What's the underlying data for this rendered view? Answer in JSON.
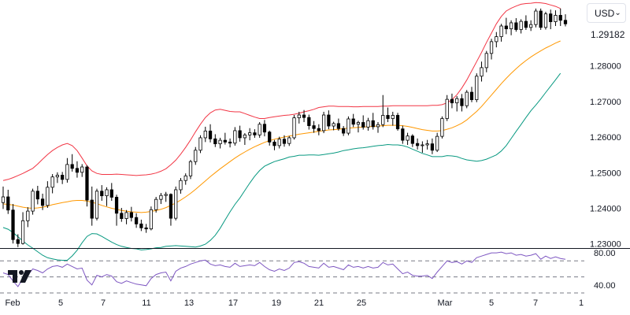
{
  "currency_selector": {
    "label": "USD",
    "icon": "chevron-down-icon"
  },
  "last_price": "1.29182",
  "logo": "tradingview-logo",
  "colors": {
    "up": "#ffffff",
    "down": "#000000",
    "upper_band": "#f23645",
    "basis": "#ff9800",
    "lower_band": "#089981",
    "rsi": "#7e57c2",
    "rsi_levels": "#787b86"
  },
  "chart_data": {
    "type": "candlestick",
    "price_axis": {
      "ticks": [
        "1.23000",
        "1.24000",
        "1.25000",
        "1.26000",
        "1.27000",
        "1.28000"
      ],
      "range": [
        1.2286,
        1.2985
      ]
    },
    "rsi_axis": {
      "ticks": [
        "80.00",
        "40.00"
      ],
      "range": [
        30,
        85
      ],
      "levels": [
        70,
        50,
        30
      ]
    },
    "x_ticks": [
      "Feb",
      "5",
      "7",
      "11",
      "13",
      "17",
      "19",
      "21",
      "25",
      "Mar",
      "5",
      "7",
      "1"
    ],
    "candles": [
      [
        1.2416,
        1.2461,
        1.2398,
        1.2432
      ],
      [
        1.2432,
        1.2452,
        1.2384,
        1.2395
      ],
      [
        1.2395,
        1.2412,
        1.2301,
        1.2312
      ],
      [
        1.2312,
        1.2327,
        1.2291,
        1.2301
      ],
      [
        1.2301,
        1.2389,
        1.2298,
        1.2365
      ],
      [
        1.2365,
        1.2403,
        1.2347,
        1.2392
      ],
      [
        1.2392,
        1.2455,
        1.2382,
        1.2448
      ],
      [
        1.2448,
        1.2463,
        1.2411,
        1.2426
      ],
      [
        1.2426,
        1.2441,
        1.2395,
        1.2408
      ],
      [
        1.2408,
        1.2476,
        1.2401,
        1.2459
      ],
      [
        1.2459,
        1.2496,
        1.2442,
        1.2488
      ],
      [
        1.2488,
        1.2501,
        1.2471,
        1.2493
      ],
      [
        1.2493,
        1.2502,
        1.2468,
        1.2481
      ],
      [
        1.2481,
        1.2541,
        1.2472,
        1.2523
      ],
      [
        1.2523,
        1.2552,
        1.2503,
        1.2512
      ],
      [
        1.2512,
        1.2532,
        1.2486,
        1.2501
      ],
      [
        1.2501,
        1.2524,
        1.2488,
        1.2516
      ],
      [
        1.2516,
        1.2521,
        1.2405,
        1.2423
      ],
      [
        1.2423,
        1.2461,
        1.2351,
        1.2372
      ],
      [
        1.2372,
        1.2455,
        1.2366,
        1.2448
      ],
      [
        1.2448,
        1.2465,
        1.2421,
        1.2435
      ],
      [
        1.2435,
        1.2459,
        1.2406,
        1.2452
      ],
      [
        1.2452,
        1.2471,
        1.2421,
        1.2431
      ],
      [
        1.2431,
        1.2438,
        1.2351,
        1.2386
      ],
      [
        1.2386,
        1.2401,
        1.2362,
        1.2371
      ],
      [
        1.2371,
        1.2395,
        1.2355,
        1.2388
      ],
      [
        1.2388,
        1.2404,
        1.2363,
        1.2374
      ],
      [
        1.2374,
        1.2386,
        1.2345,
        1.2356
      ],
      [
        1.2356,
        1.2368,
        1.2336,
        1.2345
      ],
      [
        1.2345,
        1.2356,
        1.2331,
        1.2342
      ],
      [
        1.2342,
        1.2405,
        1.2338,
        1.2396
      ],
      [
        1.2396,
        1.2432,
        1.2388,
        1.2425
      ],
      [
        1.2425,
        1.2443,
        1.2412,
        1.2436
      ],
      [
        1.2436,
        1.2446,
        1.2418,
        1.2439
      ],
      [
        1.2439,
        1.2442,
        1.2351,
        1.2372
      ],
      [
        1.2372,
        1.2461,
        1.2366,
        1.2452
      ],
      [
        1.2452,
        1.2485,
        1.2441,
        1.2478
      ],
      [
        1.2478,
        1.2498,
        1.2466,
        1.2491
      ],
      [
        1.2491,
        1.2536,
        1.2482,
        1.2531
      ],
      [
        1.2531,
        1.2572,
        1.2522,
        1.2563
      ],
      [
        1.2563,
        1.2605,
        1.2555,
        1.2598
      ],
      [
        1.2598,
        1.2629,
        1.2586,
        1.2617
      ],
      [
        1.2617,
        1.2636,
        1.2585,
        1.2595
      ],
      [
        1.2595,
        1.2608,
        1.2572,
        1.2581
      ],
      [
        1.2581,
        1.2598,
        1.2568,
        1.2591
      ],
      [
        1.2591,
        1.2612,
        1.2579,
        1.2586
      ],
      [
        1.2586,
        1.2596,
        1.2571,
        1.2583
      ],
      [
        1.2583,
        1.2628,
        1.2576,
        1.2618
      ],
      [
        1.2618,
        1.2632,
        1.2587,
        1.2598
      ],
      [
        1.2598,
        1.2611,
        1.2578,
        1.2606
      ],
      [
        1.2606,
        1.2625,
        1.2591,
        1.2612
      ],
      [
        1.2612,
        1.2622,
        1.2598,
        1.2606
      ],
      [
        1.2606,
        1.2642,
        1.2598,
        1.2636
      ],
      [
        1.2636,
        1.2648,
        1.2602,
        1.2614
      ],
      [
        1.2614,
        1.2618,
        1.2576,
        1.2586
      ],
      [
        1.2586,
        1.2592,
        1.2563,
        1.2576
      ],
      [
        1.2576,
        1.2601,
        1.2568,
        1.2594
      ],
      [
        1.2594,
        1.2605,
        1.2573,
        1.2582
      ],
      [
        1.2582,
        1.2603,
        1.2575,
        1.2598
      ],
      [
        1.2598,
        1.2662,
        1.2593,
        1.2654
      ],
      [
        1.2654,
        1.2671,
        1.2638,
        1.2662
      ],
      [
        1.2662,
        1.2676,
        1.2642,
        1.2655
      ],
      [
        1.2655,
        1.2663,
        1.2621,
        1.2632
      ],
      [
        1.2632,
        1.2645,
        1.2612,
        1.2624
      ],
      [
        1.2624,
        1.2636,
        1.2605,
        1.2618
      ],
      [
        1.2618,
        1.2671,
        1.2611,
        1.2662
      ],
      [
        1.2662,
        1.2675,
        1.2622,
        1.2631
      ],
      [
        1.2631,
        1.2643,
        1.2619,
        1.2638
      ],
      [
        1.2638,
        1.2652,
        1.2618,
        1.2624
      ],
      [
        1.2624,
        1.2631,
        1.2603,
        1.2611
      ],
      [
        1.2611,
        1.2658,
        1.2605,
        1.2651
      ],
      [
        1.2651,
        1.2665,
        1.2628,
        1.2636
      ],
      [
        1.2636,
        1.2646,
        1.2613,
        1.2641
      ],
      [
        1.2641,
        1.2661,
        1.2621,
        1.2628
      ],
      [
        1.2628,
        1.2654,
        1.2618,
        1.2646
      ],
      [
        1.2646,
        1.2668,
        1.2621,
        1.2629
      ],
      [
        1.2629,
        1.2642,
        1.2612,
        1.2635
      ],
      [
        1.2635,
        1.2718,
        1.2628,
        1.2661
      ],
      [
        1.2661,
        1.2683,
        1.2642,
        1.2652
      ],
      [
        1.2652,
        1.2671,
        1.2632,
        1.2661
      ],
      [
        1.2661,
        1.2668,
        1.2618,
        1.2623
      ],
      [
        1.2623,
        1.2632,
        1.2581,
        1.2591
      ],
      [
        1.2591,
        1.2612,
        1.2578,
        1.2603
      ],
      [
        1.2603,
        1.2608,
        1.2572,
        1.2582
      ],
      [
        1.2582,
        1.2596,
        1.2565,
        1.2576
      ],
      [
        1.2576,
        1.2588,
        1.2556,
        1.2578
      ],
      [
        1.2578,
        1.2592,
        1.2565,
        1.2581
      ],
      [
        1.2581,
        1.2596,
        1.2552,
        1.2563
      ],
      [
        1.2563,
        1.2612,
        1.2558,
        1.2602
      ],
      [
        1.2602,
        1.2658,
        1.2596,
        1.2652
      ],
      [
        1.2652,
        1.2718,
        1.2645,
        1.2706
      ],
      [
        1.2706,
        1.2722,
        1.2681,
        1.2696
      ],
      [
        1.2696,
        1.2715,
        1.2672,
        1.2708
      ],
      [
        1.2708,
        1.2721,
        1.2672,
        1.2688
      ],
      [
        1.2688,
        1.2732,
        1.2681,
        1.2726
      ],
      [
        1.2726,
        1.2741,
        1.2698,
        1.2705
      ],
      [
        1.2705,
        1.2779,
        1.2698,
        1.2771
      ],
      [
        1.2771,
        1.2812,
        1.2756,
        1.2795
      ],
      [
        1.2795,
        1.2842,
        1.2782,
        1.2835
      ],
      [
        1.2835,
        1.2876,
        1.2818,
        1.2868
      ],
      [
        1.2868,
        1.2895,
        1.2852,
        1.2882
      ],
      [
        1.2882,
        1.2918,
        1.2868,
        1.2912
      ],
      [
        1.2912,
        1.2935,
        1.2889,
        1.2904
      ],
      [
        1.2904,
        1.2928,
        1.2886,
        1.2921
      ],
      [
        1.2921,
        1.2934,
        1.2896,
        1.2902
      ],
      [
        1.2902,
        1.2931,
        1.2891,
        1.2925
      ],
      [
        1.2925,
        1.2942,
        1.2901,
        1.2908
      ],
      [
        1.2908,
        1.2928,
        1.2898,
        1.2916
      ],
      [
        1.2916,
        1.2961,
        1.2908,
        1.2954
      ],
      [
        1.2954,
        1.2961,
        1.2901,
        1.2908
      ],
      [
        1.2908,
        1.2952,
        1.2902,
        1.2946
      ],
      [
        1.2946,
        1.2958,
        1.2903,
        1.2924
      ],
      [
        1.2924,
        1.2956,
        1.2912,
        1.2942
      ],
      [
        1.2942,
        1.2961,
        1.2912,
        1.2928
      ],
      [
        1.2928,
        1.2945,
        1.2911,
        1.2918
      ]
    ],
    "bollinger": {
      "upper": [
        1.2478,
        1.2481,
        1.2486,
        1.2492,
        1.2498,
        1.2505,
        1.2512,
        1.2524,
        1.2538,
        1.2551,
        1.2562,
        1.2571,
        1.2578,
        1.2582,
        1.2576,
        1.2562,
        1.2541,
        1.2519,
        1.2505,
        1.2498,
        1.2495,
        1.2495,
        1.2495,
        1.2496,
        1.2495,
        1.2494,
        1.2493,
        1.2492,
        1.2493,
        1.2494,
        1.2496,
        1.2499,
        1.2504,
        1.2511,
        1.2522,
        1.2535,
        1.2552,
        1.2571,
        1.2592,
        1.2615,
        1.2636,
        1.2655,
        1.2668,
        1.2676,
        1.2678,
        1.2675,
        1.2672,
        1.2671,
        1.2671,
        1.2666,
        1.2661,
        1.2656,
        1.2652,
        1.2652,
        1.2655,
        1.2657,
        1.2659,
        1.2661,
        1.2662,
        1.2664,
        1.2667,
        1.2671,
        1.2674,
        1.2678,
        1.2683,
        1.2685,
        1.2687,
        1.2687,
        1.2686,
        1.2686,
        1.2686,
        1.2685,
        1.2685,
        1.2686,
        1.2686,
        1.2686,
        1.2686,
        1.2687,
        1.2687,
        1.2688,
        1.2688,
        1.2688,
        1.2688,
        1.2688,
        1.2688,
        1.2688,
        1.2688,
        1.2689,
        1.2689,
        1.2691,
        1.2696,
        1.2705,
        1.2719,
        1.2738,
        1.276,
        1.2786,
        1.2812,
        1.2838,
        1.2866,
        1.2892,
        1.2918,
        1.2939,
        1.2954,
        1.2962,
        1.2968,
        1.2973,
        1.2975,
        1.2976,
        1.2978,
        1.2977,
        1.2975,
        1.2971,
        1.2967,
        1.2961
      ],
      "basis": [
        1.2412,
        1.2411,
        1.2409,
        1.2406,
        1.2403,
        1.2401,
        1.24,
        1.2401,
        1.2403,
        1.2406,
        1.241,
        1.2413,
        1.2416,
        1.2418,
        1.2421,
        1.2422,
        1.2422,
        1.242,
        1.2417,
        1.2413,
        1.2408,
        1.2404,
        1.24,
        1.2397,
        1.2394,
        1.2392,
        1.239,
        1.2389,
        1.2388,
        1.2389,
        1.2391,
        1.2394,
        1.2397,
        1.2402,
        1.2408,
        1.2415,
        1.2423,
        1.2432,
        1.2442,
        1.2453,
        1.2465,
        1.2477,
        1.2489,
        1.25,
        1.2511,
        1.2521,
        1.2531,
        1.2541,
        1.255,
        1.2558,
        1.2566,
        1.2573,
        1.2579,
        1.2585,
        1.259,
        1.2594,
        1.2597,
        1.26,
        1.2603,
        1.2605,
        1.2608,
        1.261,
        1.2612,
        1.2614,
        1.2616,
        1.2618,
        1.262,
        1.2621,
        1.2622,
        1.2624,
        1.2625,
        1.2626,
        1.2627,
        1.2628,
        1.2629,
        1.263,
        1.2631,
        1.2632,
        1.2633,
        1.2633,
        1.2633,
        1.2632,
        1.263,
        1.2627,
        1.2624,
        1.2621,
        1.2619,
        1.2617,
        1.2617,
        1.2618,
        1.2622,
        1.2626,
        1.2632,
        1.2639,
        1.2648,
        1.266,
        1.2672,
        1.2686,
        1.2702,
        1.2718,
        1.2734,
        1.275,
        1.2765,
        1.2779,
        1.2792,
        1.2804,
        1.2815,
        1.2825,
        1.2834,
        1.2842,
        1.285,
        1.2857,
        1.2864,
        1.287
      ],
      "lower": [
        1.2346,
        1.2341,
        1.2332,
        1.232,
        1.2308,
        1.2297,
        1.2288,
        1.2278,
        1.2268,
        1.2261,
        1.2258,
        1.2255,
        1.2254,
        1.2254,
        1.2266,
        1.2282,
        1.2303,
        1.2321,
        1.2329,
        1.2328,
        1.2321,
        1.2313,
        1.2305,
        1.2298,
        1.2293,
        1.229,
        1.2287,
        1.2286,
        1.2283,
        1.2284,
        1.2286,
        1.2289,
        1.229,
        1.2293,
        1.2294,
        1.2295,
        1.2294,
        1.2293,
        1.2292,
        1.2291,
        1.2294,
        1.2299,
        1.231,
        1.2324,
        1.2344,
        1.2367,
        1.239,
        1.2411,
        1.2429,
        1.245,
        1.2471,
        1.249,
        1.2506,
        1.2518,
        1.2525,
        1.2531,
        1.2535,
        1.2539,
        1.2544,
        1.2546,
        1.2549,
        1.2549,
        1.255,
        1.255,
        1.2549,
        1.2551,
        1.2553,
        1.2555,
        1.2558,
        1.2562,
        1.2564,
        1.2567,
        1.2569,
        1.257,
        1.2572,
        1.2574,
        1.2576,
        1.2577,
        1.2579,
        1.2578,
        1.2578,
        1.2576,
        1.2572,
        1.2566,
        1.256,
        1.2554,
        1.255,
        1.2545,
        1.2545,
        1.2545,
        1.2548,
        1.2547,
        1.2545,
        1.254,
        1.2536,
        1.2534,
        1.2532,
        1.2534,
        1.2538,
        1.2544,
        1.255,
        1.2561,
        1.2576,
        1.2596,
        1.2616,
        1.2635,
        1.2655,
        1.2674,
        1.269,
        1.2707,
        1.2725,
        1.2743,
        1.2761,
        1.2779
      ]
    },
    "rsi": [
      55,
      53,
      45,
      38,
      48,
      52,
      60,
      58,
      55,
      60,
      63,
      64,
      62,
      66,
      63,
      60,
      61,
      46,
      40,
      52,
      50,
      53,
      51,
      44,
      42,
      45,
      43,
      41,
      40,
      39,
      48,
      53,
      55,
      56,
      45,
      57,
      61,
      63,
      66,
      68,
      70,
      71,
      66,
      64,
      65,
      63,
      62,
      67,
      63,
      64,
      65,
      64,
      68,
      63,
      59,
      57,
      60,
      58,
      61,
      68,
      69,
      67,
      63,
      62,
      61,
      67,
      62,
      63,
      61,
      59,
      65,
      62,
      63,
      61,
      63,
      61,
      62,
      68,
      65,
      66,
      60,
      54,
      56,
      52,
      51,
      51,
      52,
      48,
      56,
      63,
      70,
      68,
      69,
      66,
      70,
      68,
      74,
      76,
      78,
      80,
      80,
      81,
      79,
      80,
      77,
      78,
      76,
      77,
      79,
      72,
      76,
      73,
      75,
      73,
      72
    ]
  }
}
